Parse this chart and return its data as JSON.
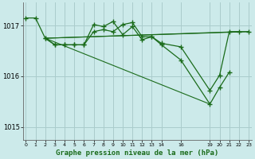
{
  "bg_color": "#cceaea",
  "grid_color": "#aacccc",
  "line_color": "#1a6b1a",
  "title": "Graphe pression niveau de la mer (hPa)",
  "ylim": [
    1014.75,
    1017.45
  ],
  "yticks": [
    1015,
    1016,
    1017
  ],
  "xlim": [
    -0.3,
    23.3
  ],
  "xtick_positions": [
    0,
    1,
    2,
    3,
    4,
    5,
    6,
    7,
    8,
    9,
    10,
    11,
    12,
    13,
    14,
    16,
    19,
    20,
    21,
    22,
    23
  ],
  "xtick_labels": [
    "0",
    "1",
    "2",
    "3",
    "4",
    "5",
    "6",
    "7",
    "8",
    "9",
    "10",
    "11",
    "12",
    "13",
    "14",
    "16",
    "19",
    "20",
    "21",
    "22",
    "23"
  ],
  "series1_x": [
    0,
    1,
    2,
    3,
    4,
    5,
    6,
    7,
    8,
    9,
    10,
    11,
    12,
    13,
    14,
    16,
    19,
    20,
    21,
    22,
    23
  ],
  "series1_y": [
    1017.15,
    1017.15,
    1016.75,
    1016.62,
    1016.62,
    1016.62,
    1016.62,
    1016.88,
    1016.92,
    1016.88,
    1017.02,
    1017.06,
    1016.78,
    1016.78,
    1016.65,
    1016.58,
    1015.72,
    1016.02,
    1016.88,
    1016.88,
    1016.88
  ],
  "series2_x": [
    2,
    3,
    4,
    5,
    6,
    7,
    8,
    9,
    10,
    11,
    12,
    13,
    14,
    16,
    19,
    20,
    21
  ],
  "series2_y": [
    1016.75,
    1016.62,
    1016.62,
    1016.62,
    1016.62,
    1017.02,
    1016.98,
    1017.08,
    1016.82,
    1016.98,
    1016.72,
    1016.78,
    1016.62,
    1016.32,
    1015.45,
    1015.78,
    1016.08
  ],
  "thin_lines": [
    {
      "x": [
        2,
        23
      ],
      "y": [
        1016.75,
        1016.88
      ]
    },
    {
      "x": [
        2,
        22
      ],
      "y": [
        1016.75,
        1016.88
      ]
    },
    {
      "x": [
        2,
        19
      ],
      "y": [
        1016.75,
        1015.45
      ]
    }
  ]
}
